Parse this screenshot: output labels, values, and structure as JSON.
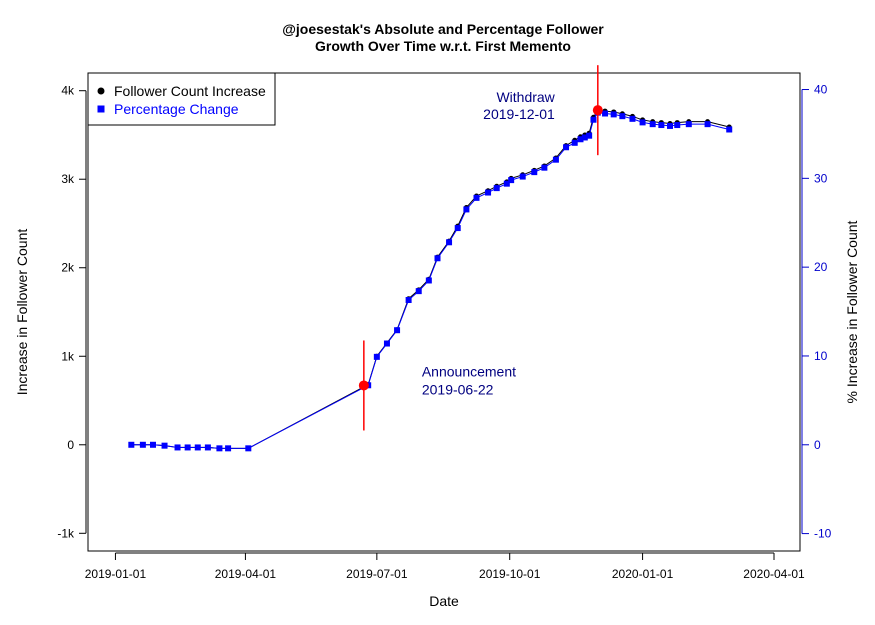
{
  "chart_data": {
    "type": "line",
    "title_lines": [
      "@joesestak's Absolute and Percentage Follower",
      "Growth Over Time w.r.t. First Memento"
    ],
    "xlabel": "Date",
    "ylabel_left": "Increase in Follower Count",
    "ylabel_right": "% Increase in Follower Count",
    "x_ticks": [
      "2019-01-01",
      "2019-04-01",
      "2019-07-01",
      "2019-10-01",
      "2020-01-01",
      "2020-04-01"
    ],
    "xlim": [
      "2018-12-13",
      "2020-04-19"
    ],
    "y_left_ticks": [
      "-1k",
      "0",
      "1k",
      "2k",
      "3k",
      "4k"
    ],
    "y_left_lim": [
      -1200,
      4200
    ],
    "y_right_ticks": [
      "-10",
      "0",
      "10",
      "20",
      "30",
      "40"
    ],
    "y_right_lim": [
      -11.96,
      41.86
    ],
    "grid": false,
    "legend_position": "top-left",
    "legend": [
      {
        "label": "Follower Count Increase",
        "marker": "circle",
        "color": "#000000"
      },
      {
        "label": "Percentage Change",
        "marker": "square",
        "color": "#0000ff"
      }
    ],
    "series": [
      {
        "name": "Follower Count Increase",
        "color": "#000000",
        "axis": "left",
        "x": [
          "2019-01-12",
          "2019-01-20",
          "2019-01-27",
          "2019-02-04",
          "2019-02-13",
          "2019-02-20",
          "2019-02-27",
          "2019-03-06",
          "2019-03-14",
          "2019-03-20",
          "2019-04-03",
          "2019-06-25",
          "2019-07-01",
          "2019-07-08",
          "2019-07-15",
          "2019-07-23",
          "2019-07-30",
          "2019-08-06",
          "2019-08-12",
          "2019-08-20",
          "2019-08-26",
          "2019-09-01",
          "2019-09-08",
          "2019-09-16",
          "2019-09-22",
          "2019-09-29",
          "2019-10-02",
          "2019-10-10",
          "2019-10-18",
          "2019-10-25",
          "2019-11-02",
          "2019-11-09",
          "2019-11-15",
          "2019-11-19",
          "2019-11-22",
          "2019-11-25",
          "2019-11-28",
          "2019-12-01",
          "2019-12-06",
          "2019-12-12",
          "2019-12-18",
          "2019-12-25",
          "2020-01-01",
          "2020-01-08",
          "2020-01-14",
          "2020-01-20",
          "2020-01-25",
          "2020-02-02",
          "2020-02-15",
          "2020-03-01"
        ],
        "y": [
          0,
          0,
          0,
          -10,
          -30,
          -30,
          -30,
          -30,
          -40,
          -40,
          -40,
          680,
          1000,
          1150,
          1300,
          1650,
          1750,
          1870,
          2120,
          2300,
          2470,
          2680,
          2810,
          2870,
          2920,
          2970,
          3010,
          3050,
          3100,
          3150,
          3240,
          3380,
          3440,
          3480,
          3500,
          3520,
          3700,
          3780,
          3770,
          3760,
          3740,
          3710,
          3670,
          3650,
          3640,
          3630,
          3640,
          3650,
          3650,
          3590
        ]
      },
      {
        "name": "Percentage Change",
        "color": "#0000ff",
        "axis": "right",
        "x": [
          "2019-01-12",
          "2019-01-20",
          "2019-01-27",
          "2019-02-04",
          "2019-02-13",
          "2019-02-20",
          "2019-02-27",
          "2019-03-06",
          "2019-03-14",
          "2019-03-20",
          "2019-04-03",
          "2019-06-25",
          "2019-07-01",
          "2019-07-08",
          "2019-07-15",
          "2019-07-23",
          "2019-07-30",
          "2019-08-06",
          "2019-08-12",
          "2019-08-20",
          "2019-08-26",
          "2019-09-01",
          "2019-09-08",
          "2019-09-16",
          "2019-09-22",
          "2019-09-29",
          "2019-10-02",
          "2019-10-10",
          "2019-10-18",
          "2019-10-25",
          "2019-11-02",
          "2019-11-09",
          "2019-11-15",
          "2019-11-19",
          "2019-11-22",
          "2019-11-25",
          "2019-11-28",
          "2019-12-01",
          "2019-12-06",
          "2019-12-12",
          "2019-12-18",
          "2019-12-25",
          "2020-01-01",
          "2020-01-08",
          "2020-01-14",
          "2020-01-20",
          "2020-01-25",
          "2020-02-02",
          "2020-02-15",
          "2020-03-01"
        ],
        "y": [
          0,
          0,
          0,
          -0.1,
          -0.3,
          -0.3,
          -0.3,
          -0.3,
          -0.4,
          -0.4,
          -0.4,
          6.7,
          9.9,
          11.4,
          12.9,
          16.3,
          17.3,
          18.5,
          21.0,
          22.8,
          24.4,
          26.5,
          27.8,
          28.4,
          28.9,
          29.4,
          29.8,
          30.2,
          30.7,
          31.2,
          32.1,
          33.5,
          34.0,
          34.4,
          34.6,
          34.8,
          36.6,
          37.4,
          37.3,
          37.2,
          37.0,
          36.7,
          36.3,
          36.1,
          36.0,
          35.9,
          36.0,
          36.1,
          36.1,
          35.5
        ]
      }
    ],
    "events": [
      {
        "label": "Announcement",
        "date": "2019-06-22",
        "x": "2019-06-22",
        "y": 670,
        "label_side": "right-below"
      },
      {
        "label": "Withdraw",
        "date": "2019-12-01",
        "x": "2019-12-01",
        "y": 3780,
        "label_side": "left-above"
      }
    ],
    "event_color": "#ff0000"
  }
}
